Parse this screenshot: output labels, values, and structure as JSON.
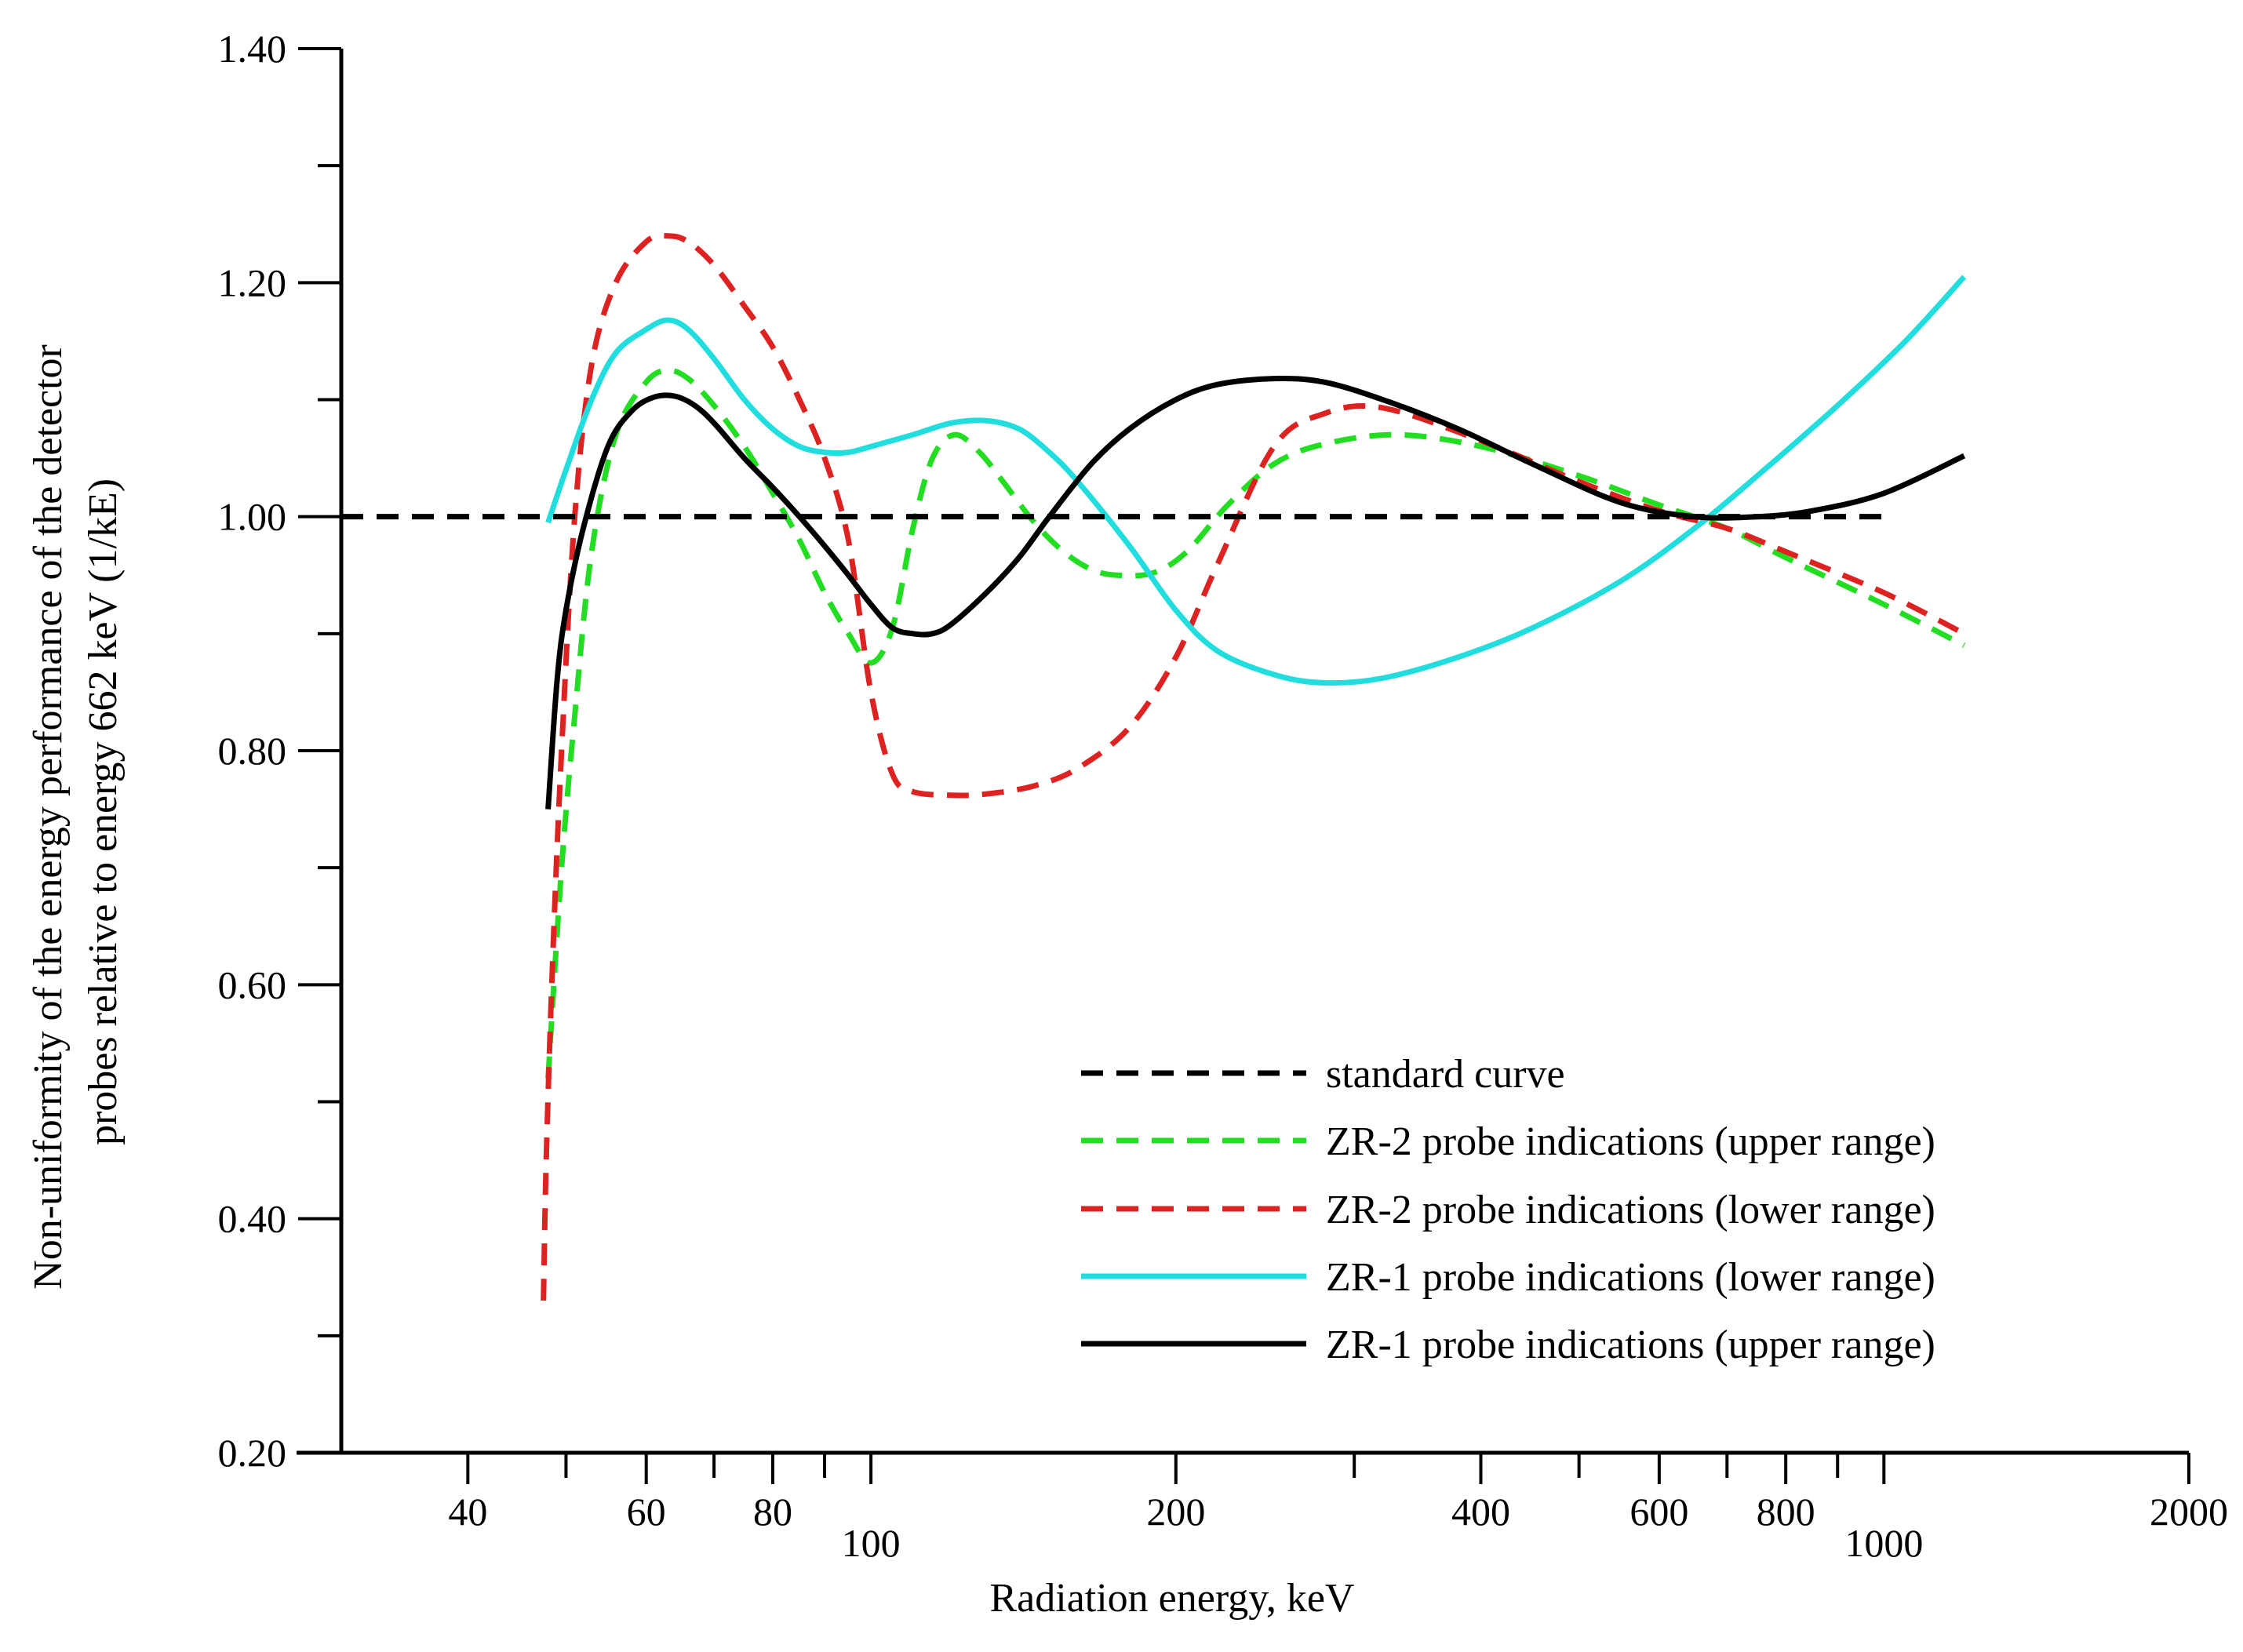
{
  "chart_data": {
    "type": "line",
    "title": "",
    "xlabel": "Radiation energy, keV",
    "ylabel_lines": [
      "Non-uniformity of the energy performance of the detector",
      "probes relative to energy 662 keV (1/kE)"
    ],
    "x_scale": "log",
    "xlim": [
      30,
      2000
    ],
    "ylim": [
      0.2,
      1.4
    ],
    "x_ticks_major": [
      {
        "value": 40,
        "label": "40"
      },
      {
        "value": 60,
        "label": "60"
      },
      {
        "value": 80,
        "label": "80"
      },
      {
        "value": 100,
        "label": "100"
      },
      {
        "value": 200,
        "label": "200"
      },
      {
        "value": 400,
        "label": "400"
      },
      {
        "value": 600,
        "label": "600"
      },
      {
        "value": 800,
        "label": "800"
      },
      {
        "value": 1000,
        "label": "1000"
      },
      {
        "value": 2000,
        "label": "2000"
      }
    ],
    "x_ticks_minor": [
      50,
      70,
      90,
      300,
      500,
      700,
      900
    ],
    "y_ticks_major": [
      {
        "value": 0.2,
        "label": "0.20"
      },
      {
        "value": 0.4,
        "label": "0.40"
      },
      {
        "value": 0.6,
        "label": "0.60"
      },
      {
        "value": 0.8,
        "label": "0.80"
      },
      {
        "value": 1.0,
        "label": "1.00"
      },
      {
        "value": 1.2,
        "label": "1.20"
      },
      {
        "value": 1.4,
        "label": "1.40"
      }
    ],
    "y_ticks_minor": [
      0.3,
      0.5,
      0.7,
      0.9,
      1.1,
      1.3
    ],
    "grid": false,
    "legend_position": "bottom-right",
    "series": [
      {
        "name": "standard curve",
        "color": "#000000",
        "dash": "dashed",
        "x": [
          30,
          1000
        ],
        "y": [
          1.0,
          1.0
        ]
      },
      {
        "name": "ZR-2 probe indications (upper range)",
        "color": "#22dd22",
        "dash": "dashed",
        "x": [
          48,
          49.5,
          51,
          53,
          56,
          60,
          63,
          66,
          70,
          75,
          80,
          85,
          90,
          95,
          100,
          105,
          110,
          115,
          121,
          128,
          135,
          145,
          155,
          165,
          175,
          190,
          205,
          225,
          250,
          280,
          330,
          400,
          500,
          600,
          700,
          800,
          1000,
          1200
        ],
        "y": [
          0.52,
          0.7,
          0.83,
          0.97,
          1.07,
          1.115,
          1.125,
          1.118,
          1.095,
          1.06,
          1.02,
          0.98,
          0.935,
          0.9,
          0.875,
          0.905,
          0.99,
          1.05,
          1.07,
          1.055,
          1.03,
          0.995,
          0.97,
          0.955,
          0.95,
          0.952,
          0.97,
          1.01,
          1.045,
          1.062,
          1.07,
          1.06,
          1.035,
          1.01,
          0.99,
          0.965,
          0.925,
          0.89
        ]
      },
      {
        "name": "ZR-2 probe indications (lower range)",
        "color": "#dd2222",
        "dash": "dashed",
        "x": [
          47.5,
          47.8,
          48.5,
          49.5,
          51,
          53,
          56,
          60,
          63,
          66,
          70,
          75,
          80,
          85,
          90,
          95,
          100,
          105,
          110,
          120,
          130,
          145,
          160,
          180,
          200,
          220,
          250,
          280,
          320,
          400,
          500,
          600,
          700,
          800,
          1000,
          1200
        ],
        "y": [
          0.33,
          0.45,
          0.62,
          0.8,
          1.0,
          1.13,
          1.2,
          1.235,
          1.24,
          1.235,
          1.215,
          1.18,
          1.145,
          1.1,
          1.05,
          0.98,
          0.85,
          0.78,
          0.765,
          0.762,
          0.763,
          0.77,
          0.785,
          0.82,
          0.88,
          0.96,
          1.06,
          1.088,
          1.093,
          1.065,
          1.03,
          1.005,
          0.99,
          0.97,
          0.935,
          0.9
        ]
      },
      {
        "name": "ZR-1 probe indications (lower range)",
        "color": "#22dddd",
        "dash": "solid",
        "x": [
          48,
          50,
          53,
          56,
          60,
          63,
          66,
          70,
          75,
          80,
          85,
          90,
          95,
          100,
          110,
          120,
          130,
          140,
          150,
          160,
          180,
          200,
          220,
          250,
          280,
          320,
          380,
          450,
          550,
          650,
          750,
          900,
          1050,
          1200
        ],
        "y": [
          0.995,
          1.04,
          1.1,
          1.14,
          1.16,
          1.168,
          1.16,
          1.135,
          1.1,
          1.075,
          1.06,
          1.055,
          1.055,
          1.06,
          1.07,
          1.08,
          1.082,
          1.075,
          1.055,
          1.03,
          0.975,
          0.92,
          0.885,
          0.865,
          0.858,
          0.862,
          0.88,
          0.905,
          0.945,
          0.99,
          1.035,
          1.095,
          1.15,
          1.205
        ]
      },
      {
        "name": "ZR-1 probe indications (upper range)",
        "color": "#000000",
        "dash": "solid",
        "x": [
          48,
          49,
          50,
          52,
          55,
          58,
          61,
          64,
          67,
          70,
          75,
          80,
          85,
          90,
          95,
          100,
          105,
          110,
          115,
          120,
          130,
          140,
          150,
          165,
          180,
          200,
          220,
          250,
          280,
          320,
          380,
          450,
          550,
          650,
          750,
          850,
          1000,
          1200
        ],
        "y": [
          0.75,
          0.86,
          0.92,
          0.99,
          1.06,
          1.09,
          1.102,
          1.103,
          1.095,
          1.08,
          1.05,
          1.025,
          1.0,
          0.975,
          0.95,
          0.925,
          0.905,
          0.9,
          0.9,
          0.908,
          0.935,
          0.965,
          1.0,
          1.045,
          1.075,
          1.1,
          1.113,
          1.118,
          1.115,
          1.1,
          1.075,
          1.045,
          1.012,
          1.0,
          1.0,
          1.005,
          1.02,
          1.052
        ]
      }
    ]
  }
}
